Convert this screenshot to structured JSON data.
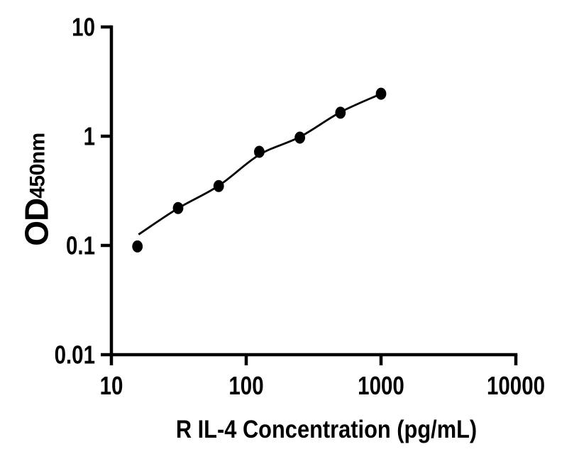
{
  "figure": {
    "background_color": "#ffffff",
    "axis_color": "#000000",
    "marker_color": "#000000",
    "curve_color": "#000000"
  },
  "chart_data": {
    "type": "scatter",
    "variant": "ELISA standard curve, log-log scatter with fitted line",
    "title": "",
    "xlabel": "R IL-4 Concentration (pg/mL)",
    "ylabel_main": "OD",
    "ylabel_subscript": "450nm",
    "xscale": "log",
    "yscale": "log",
    "xlim": [
      10,
      10000
    ],
    "ylim": [
      0.01,
      10
    ],
    "x_tick_values": [
      10,
      100,
      1000,
      10000
    ],
    "x_tick_labels": [
      "10",
      "100",
      "1000",
      "10000"
    ],
    "y_tick_values": [
      10,
      1,
      0.1,
      0.01
    ],
    "y_tick_labels": [
      "10",
      "1",
      "0.1",
      "0.01"
    ],
    "grid": false,
    "legend": "none",
    "series": [
      {
        "name": "standards",
        "type": "points",
        "marker": "filled-ellipse",
        "color": "#000000",
        "x": [
          15.6,
          31.25,
          62.5,
          125,
          250,
          500,
          1000
        ],
        "y": [
          0.098,
          0.22,
          0.35,
          0.72,
          0.97,
          1.64,
          2.45
        ]
      },
      {
        "name": "fit-curve",
        "type": "line",
        "color": "#000000",
        "x": [
          15.9,
          31.25,
          62.5,
          125,
          250,
          500,
          1000
        ],
        "y": [
          0.126,
          0.219,
          0.352,
          0.676,
          0.985,
          1.66,
          2.44
        ]
      }
    ]
  }
}
